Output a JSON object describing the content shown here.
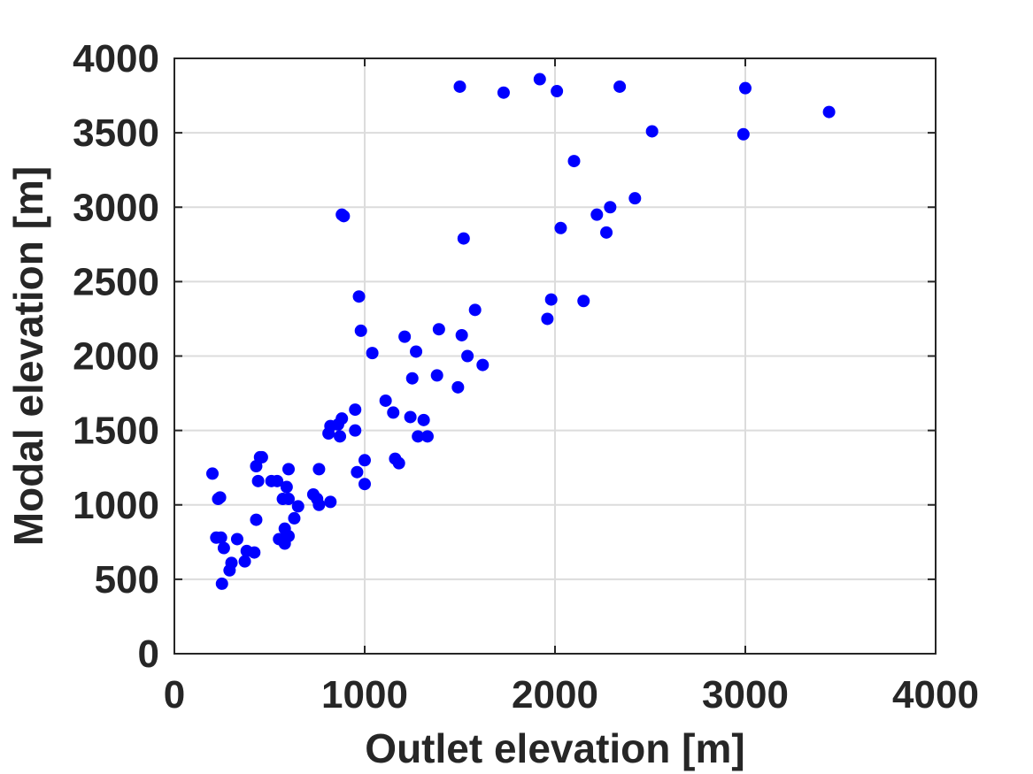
{
  "chart_data": {
    "type": "scatter",
    "xlabel": "Outlet elevation [m]",
    "ylabel": "Modal elevation [m]",
    "xlim": [
      0,
      4000
    ],
    "ylim": [
      0,
      4000
    ],
    "xticks": [
      "0",
      "1000",
      "2000",
      "3000",
      "4000"
    ],
    "yticks": [
      "0",
      "500",
      "1000",
      "1500",
      "2000",
      "2500",
      "3000",
      "3500",
      "4000"
    ],
    "grid": true,
    "marker_color": "#0000ff",
    "series": [
      {
        "points": [
          [
            200,
            1210
          ],
          [
            220,
            780
          ],
          [
            230,
            1040
          ],
          [
            240,
            1050
          ],
          [
            245,
            780
          ],
          [
            250,
            470
          ],
          [
            260,
            710
          ],
          [
            290,
            560
          ],
          [
            300,
            610
          ],
          [
            330,
            770
          ],
          [
            370,
            620
          ],
          [
            380,
            690
          ],
          [
            420,
            680
          ],
          [
            430,
            900
          ],
          [
            430,
            1260
          ],
          [
            440,
            1160
          ],
          [
            450,
            1320
          ],
          [
            460,
            1320
          ],
          [
            510,
            1160
          ],
          [
            540,
            1160
          ],
          [
            550,
            770
          ],
          [
            570,
            1040
          ],
          [
            580,
            840
          ],
          [
            580,
            740
          ],
          [
            590,
            1120
          ],
          [
            600,
            790
          ],
          [
            600,
            1040
          ],
          [
            600,
            1240
          ],
          [
            630,
            910
          ],
          [
            650,
            990
          ],
          [
            730,
            1070
          ],
          [
            750,
            1040
          ],
          [
            760,
            1000
          ],
          [
            760,
            1240
          ],
          [
            810,
            1480
          ],
          [
            820,
            1530
          ],
          [
            820,
            1020
          ],
          [
            860,
            1540
          ],
          [
            870,
            1460
          ],
          [
            880,
            1580
          ],
          [
            880,
            2950
          ],
          [
            890,
            2940
          ],
          [
            950,
            1640
          ],
          [
            950,
            1500
          ],
          [
            960,
            1220
          ],
          [
            970,
            2400
          ],
          [
            980,
            2170
          ],
          [
            1000,
            1140
          ],
          [
            1000,
            1300
          ],
          [
            1040,
            2020
          ],
          [
            1110,
            1700
          ],
          [
            1150,
            1620
          ],
          [
            1160,
            1310
          ],
          [
            1180,
            1280
          ],
          [
            1210,
            2130
          ],
          [
            1240,
            1590
          ],
          [
            1250,
            1850
          ],
          [
            1270,
            2030
          ],
          [
            1280,
            1460
          ],
          [
            1310,
            1570
          ],
          [
            1330,
            1460
          ],
          [
            1380,
            1870
          ],
          [
            1390,
            2180
          ],
          [
            1490,
            1790
          ],
          [
            1500,
            3810
          ],
          [
            1510,
            2140
          ],
          [
            1520,
            2790
          ],
          [
            1540,
            2000
          ],
          [
            1580,
            2310
          ],
          [
            1620,
            1940
          ],
          [
            1730,
            3770
          ],
          [
            1920,
            3860
          ],
          [
            1960,
            2250
          ],
          [
            1980,
            2380
          ],
          [
            2010,
            3780
          ],
          [
            2030,
            2860
          ],
          [
            2100,
            3310
          ],
          [
            2150,
            2370
          ],
          [
            2220,
            2950
          ],
          [
            2270,
            2830
          ],
          [
            2290,
            3000
          ],
          [
            2340,
            3810
          ],
          [
            2420,
            3060
          ],
          [
            2510,
            3510
          ],
          [
            2990,
            3490
          ],
          [
            3000,
            3800
          ],
          [
            3440,
            3640
          ]
        ]
      }
    ]
  }
}
